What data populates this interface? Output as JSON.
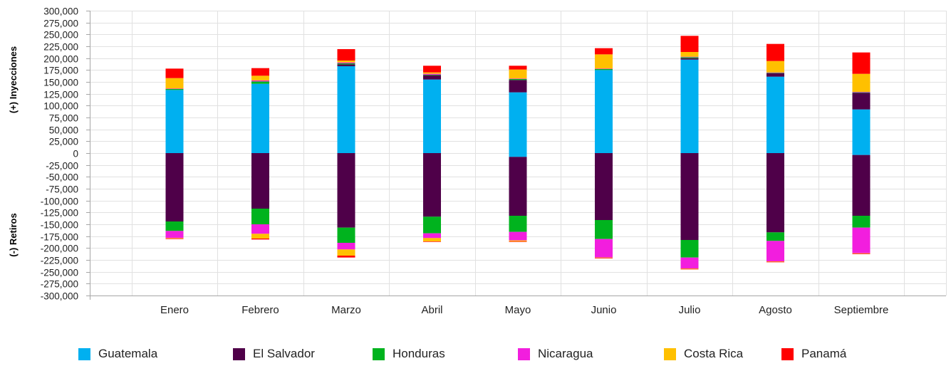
{
  "chart_data": {
    "type": "bar",
    "stacked": true,
    "categories": [
      "Enero",
      "Febrero",
      "Marzo",
      "Abril",
      "Mayo",
      "Junio",
      "Julio",
      "Agosto",
      "Septiembre"
    ],
    "ylabel_positive": "(+) Inyecciones",
    "ylabel_negative": "(-) Retiros",
    "ylim": [
      -300000,
      300000
    ],
    "ytick_step": 25000,
    "grid": true,
    "legend_position": "bottom",
    "series": [
      {
        "name": "Guatemala",
        "color": "#00B0F0",
        "positive": [
          133000,
          146000,
          183000,
          155000,
          128000,
          175000,
          197000,
          161000,
          92000
        ],
        "negative": [
          0,
          0,
          0,
          0,
          -8000,
          0,
          0,
          0,
          -4000
        ]
      },
      {
        "name": "El Salvador",
        "color": "#4F0049",
        "positive": [
          0,
          0,
          4000,
          9000,
          26000,
          0,
          3000,
          7000,
          35000
        ],
        "negative": [
          -144000,
          -117000,
          -157000,
          -134000,
          -124000,
          -141000,
          -183000,
          -167000,
          -128000
        ]
      },
      {
        "name": "Honduras",
        "color": "#00B31E",
        "positive": [
          2000,
          5000,
          2000,
          1000,
          2000,
          2000,
          2000,
          1000,
          1000
        ],
        "negative": [
          -20000,
          -33000,
          -32000,
          -35000,
          -34000,
          -40000,
          -37000,
          -18000,
          -25000
        ]
      },
      {
        "name": "Nicaragua",
        "color": "#F21EDE",
        "positive": [
          1000,
          2000,
          2000,
          2000,
          1000,
          1000,
          1000,
          1000,
          1000
        ],
        "negative": [
          -15000,
          -20000,
          -14000,
          -10000,
          -18000,
          -39000,
          -23000,
          -43000,
          -54000
        ]
      },
      {
        "name": "Costa Rica",
        "color": "#FFC000",
        "positive": [
          22000,
          10000,
          4000,
          3000,
          19000,
          30000,
          10000,
          24000,
          38000
        ],
        "negative": [
          -1000,
          -10000,
          -13000,
          -7000,
          -2000,
          -1000,
          -1000,
          -1000,
          -1000
        ]
      },
      {
        "name": "Panamá",
        "color": "#FF0000",
        "positive": [
          20000,
          16000,
          24000,
          14000,
          8000,
          13000,
          34000,
          36000,
          45000
        ],
        "negative": [
          -1000,
          -2000,
          -4000,
          -1000,
          -1000,
          -1000,
          -1000,
          -1000,
          -1000
        ]
      }
    ]
  }
}
